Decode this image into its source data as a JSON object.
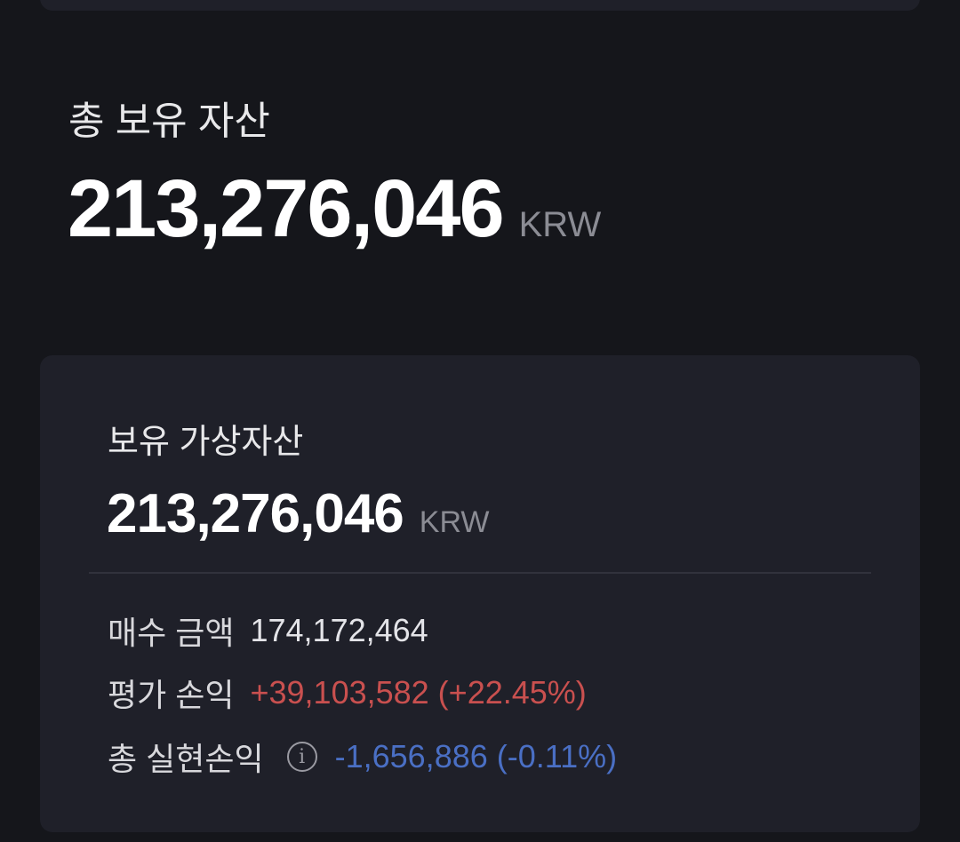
{
  "total": {
    "label": "총 보유 자산",
    "value": "213,276,046",
    "unit": "KRW"
  },
  "holdings": {
    "title": "보유 가상자산",
    "value": "213,276,046",
    "unit": "KRW",
    "purchase": {
      "label": "매수 금액",
      "value": "174,172,464"
    },
    "unrealized": {
      "label": "평가 손익",
      "value": "+39,103,582 (+22.45%)",
      "color": "#c9504f"
    },
    "realized": {
      "label": "총 실현손익",
      "icon": "info-icon",
      "icon_glyph": "i",
      "value": "-1,656,886 (-0.11%)",
      "color": "#4a6fc4"
    }
  }
}
